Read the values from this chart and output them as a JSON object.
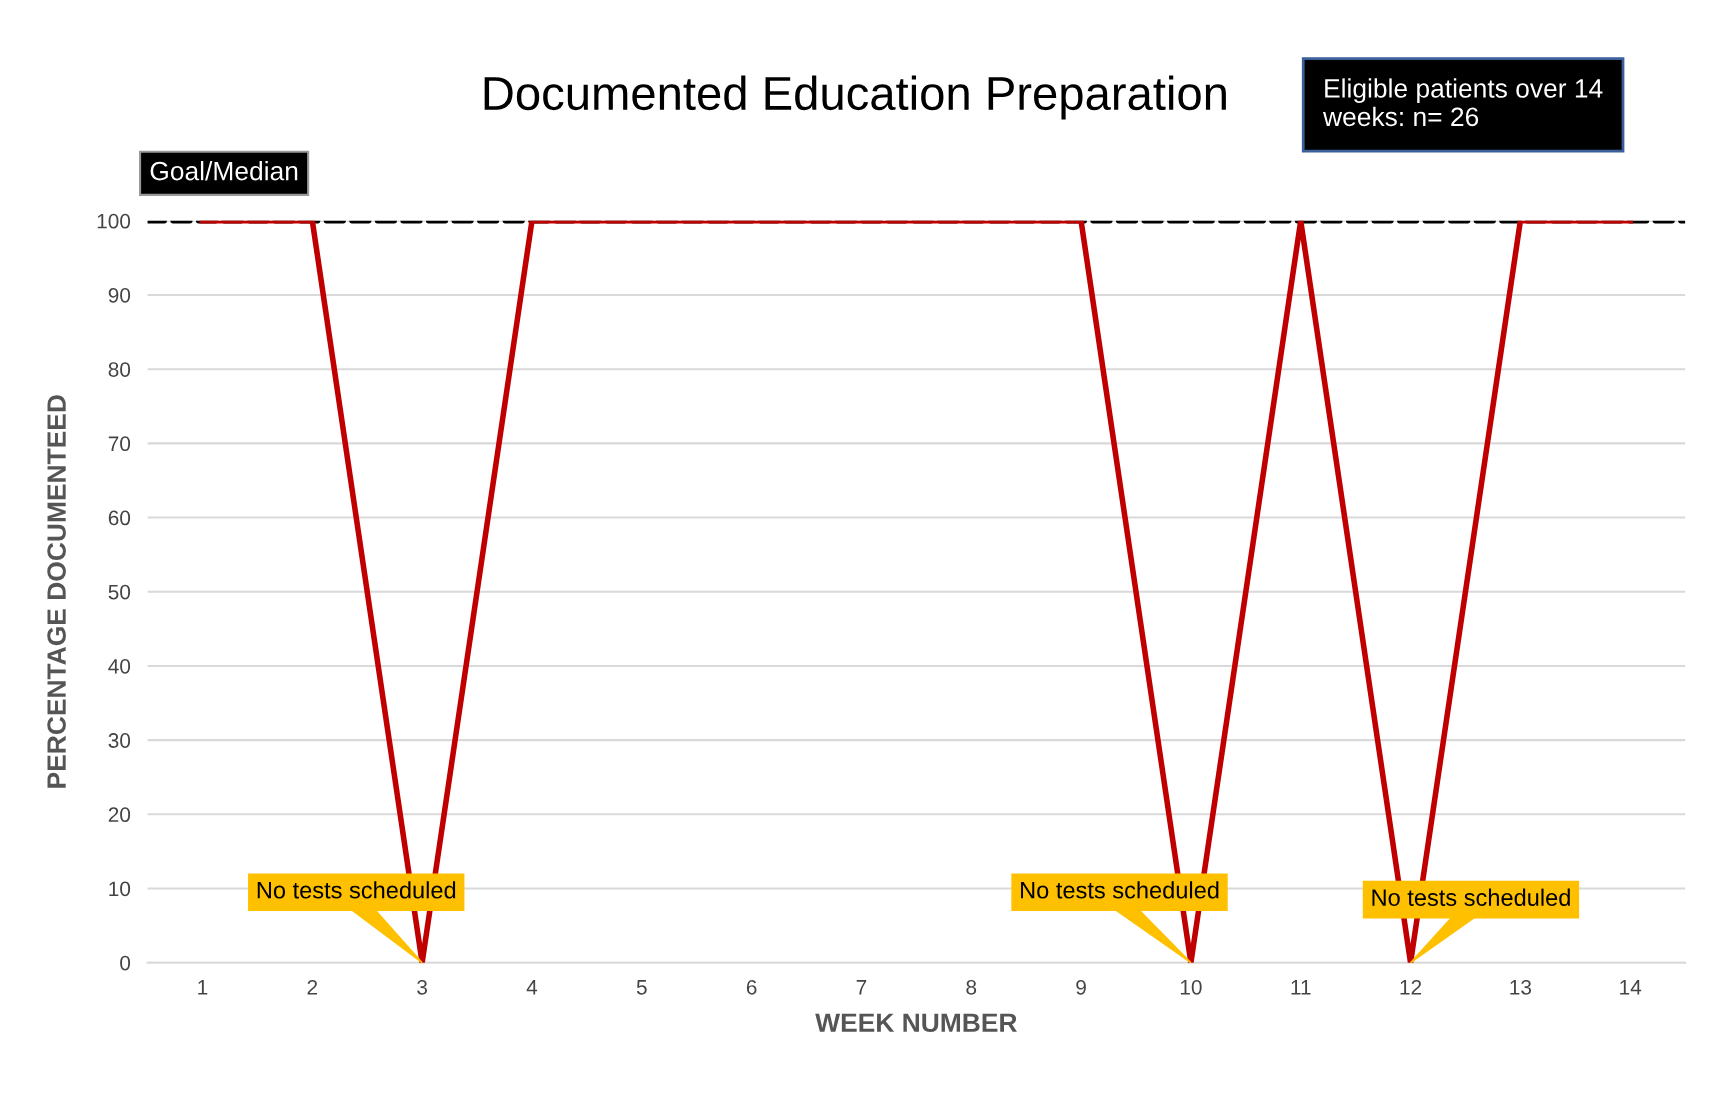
{
  "chart_data": {
    "type": "line",
    "title": "Documented Education Preparation",
    "xlabel": "WEEK NUMBER",
    "ylabel": "PERCENTAGE DOCUMENTEED",
    "categories": [
      "1",
      "2",
      "3",
      "4",
      "5",
      "6",
      "7",
      "8",
      "9",
      "10",
      "11",
      "12",
      "13",
      "14"
    ],
    "series": [
      {
        "color": "#c00000",
        "values": [
          100,
          100,
          0,
          100,
          100,
          100,
          100,
          100,
          100,
          0,
          100,
          0,
          100,
          100
        ]
      }
    ],
    "ref_lines": [
      {
        "axis": "y",
        "value": 100,
        "label": "Goal/Median",
        "color": "#000000",
        "line_style": "dashed"
      }
    ],
    "ylim": [
      0,
      100
    ],
    "yticks": [
      0,
      10,
      20,
      30,
      40,
      50,
      60,
      70,
      80,
      90,
      100
    ],
    "grid": "y",
    "marker": "none",
    "line_style": "solid",
    "annotations": [
      "Eligible patients over 14 weeks: n= 26",
      {
        "text": "No tests scheduled",
        "x": "3",
        "y": 0
      },
      {
        "text": "No tests scheduled",
        "x": "10",
        "y": 0
      },
      {
        "text": "No tests scheduled",
        "x": "12",
        "y": 0
      }
    ]
  }
}
